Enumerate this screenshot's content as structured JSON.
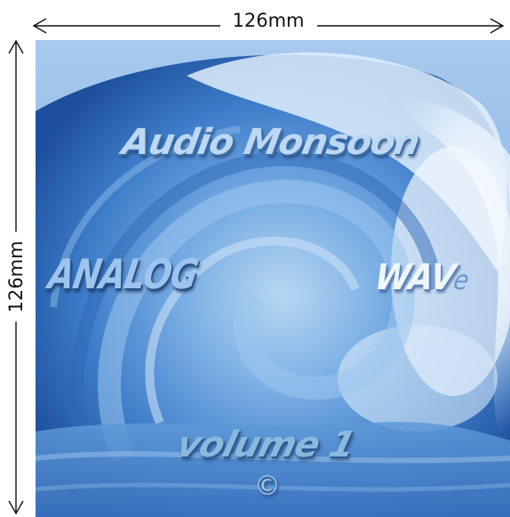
{
  "dimensions": {
    "width_label": "126mm",
    "height_label": "126mm"
  },
  "cover": {
    "brand": "Audio Monsoon",
    "title_left": "ANALOG",
    "title_right_main": "WAV",
    "title_right_suffix": "e",
    "volume": "volume 1",
    "copyright_symbol": "©",
    "colors": {
      "ocean_deep": "#1f56a8",
      "ocean_mid": "#4d8fd6",
      "foam": "#e8f2fc",
      "sky": "#bcd6f0"
    }
  }
}
